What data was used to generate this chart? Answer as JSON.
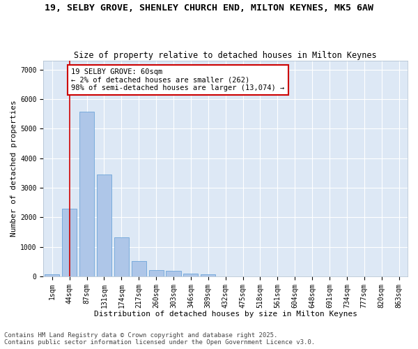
{
  "title_line1": "19, SELBY GROVE, SHENLEY CHURCH END, MILTON KEYNES, MK5 6AW",
  "title_line2": "Size of property relative to detached houses in Milton Keynes",
  "xlabel": "Distribution of detached houses by size in Milton Keynes",
  "ylabel": "Number of detached properties",
  "categories": [
    "1sqm",
    "44sqm",
    "87sqm",
    "131sqm",
    "174sqm",
    "217sqm",
    "260sqm",
    "303sqm",
    "346sqm",
    "389sqm",
    "432sqm",
    "475sqm",
    "518sqm",
    "561sqm",
    "604sqm",
    "648sqm",
    "691sqm",
    "734sqm",
    "777sqm",
    "820sqm",
    "863sqm"
  ],
  "values": [
    75,
    2300,
    5580,
    3460,
    1310,
    520,
    215,
    175,
    95,
    60,
    0,
    0,
    0,
    0,
    0,
    0,
    0,
    0,
    0,
    0,
    0
  ],
  "bar_color": "#aec6e8",
  "bar_edge_color": "#5b9bd5",
  "annotation_text": "19 SELBY GROVE: 60sqm\n← 2% of detached houses are smaller (262)\n98% of semi-detached houses are larger (13,074) →",
  "annotation_box_color": "#ffffff",
  "annotation_border_color": "#cc0000",
  "vline_color": "#cc0000",
  "vline_x": 1,
  "ylim": [
    0,
    7300
  ],
  "yticks": [
    0,
    1000,
    2000,
    3000,
    4000,
    5000,
    6000,
    7000
  ],
  "background_color": "#dde8f5",
  "grid_color": "#ffffff",
  "fig_bg_color": "#ffffff",
  "footer_line1": "Contains HM Land Registry data © Crown copyright and database right 2025.",
  "footer_line2": "Contains public sector information licensed under the Open Government Licence v3.0.",
  "title_fontsize": 9.5,
  "subtitle_fontsize": 8.5,
  "axis_label_fontsize": 8,
  "tick_label_fontsize": 7,
  "annotation_fontsize": 7.5,
  "footer_fontsize": 6.5
}
